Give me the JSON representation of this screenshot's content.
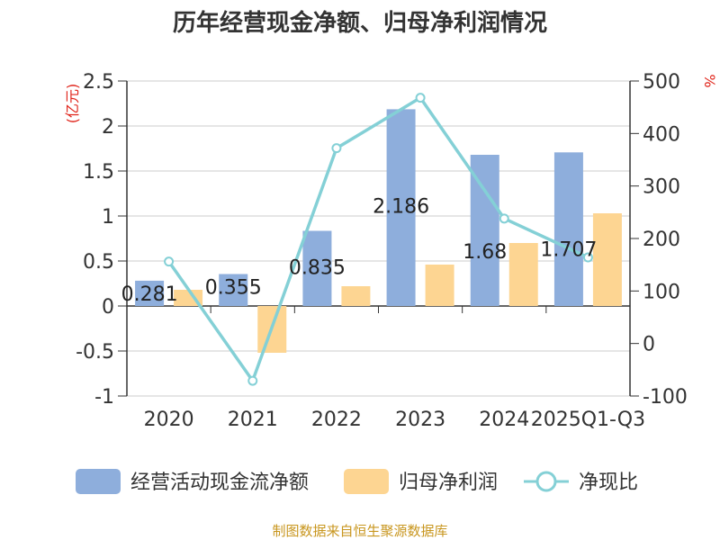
{
  "chart_data": {
    "type": "bar+line",
    "title": "历年经营现金净额、归母净利润情况",
    "categories": [
      "2020",
      "2021",
      "2022",
      "2023",
      "2024",
      "2025Q1-Q3"
    ],
    "series": [
      {
        "name": "经营活动现金流净额",
        "type": "bar",
        "axis": "left",
        "color": "#8eaedc",
        "values": [
          0.281,
          0.355,
          0.835,
          2.186,
          1.68,
          1.707
        ],
        "labels": [
          "0.281",
          "0.355",
          "0.835",
          "2.186",
          "1.68",
          "1.707"
        ]
      },
      {
        "name": "归母净利润",
        "type": "bar",
        "axis": "left",
        "color": "#fdd592",
        "values": [
          0.18,
          -0.52,
          0.22,
          0.46,
          0.7,
          1.03
        ]
      },
      {
        "name": "净现比",
        "type": "line",
        "axis": "right",
        "color": "#84d0d6",
        "values": [
          156,
          -71,
          372,
          468,
          238,
          164
        ]
      }
    ],
    "left_axis": {
      "unit": "(亿元)",
      "min": -1,
      "max": 2.5,
      "ticks": [
        -1,
        -0.5,
        0,
        0.5,
        1,
        1.5,
        2,
        2.5
      ],
      "tick_labels": [
        "-1",
        "-0.5",
        "0",
        "0.5",
        "1",
        "1.5",
        "2",
        "2.5"
      ]
    },
    "right_axis": {
      "unit": "%",
      "min": -100,
      "max": 500,
      "ticks": [
        -100,
        0,
        100,
        200,
        300,
        400,
        500
      ],
      "tick_labels": [
        "-100",
        "0",
        "100",
        "200",
        "300",
        "400",
        "500"
      ]
    },
    "source": "制图数据来自恒生聚源数据库"
  }
}
